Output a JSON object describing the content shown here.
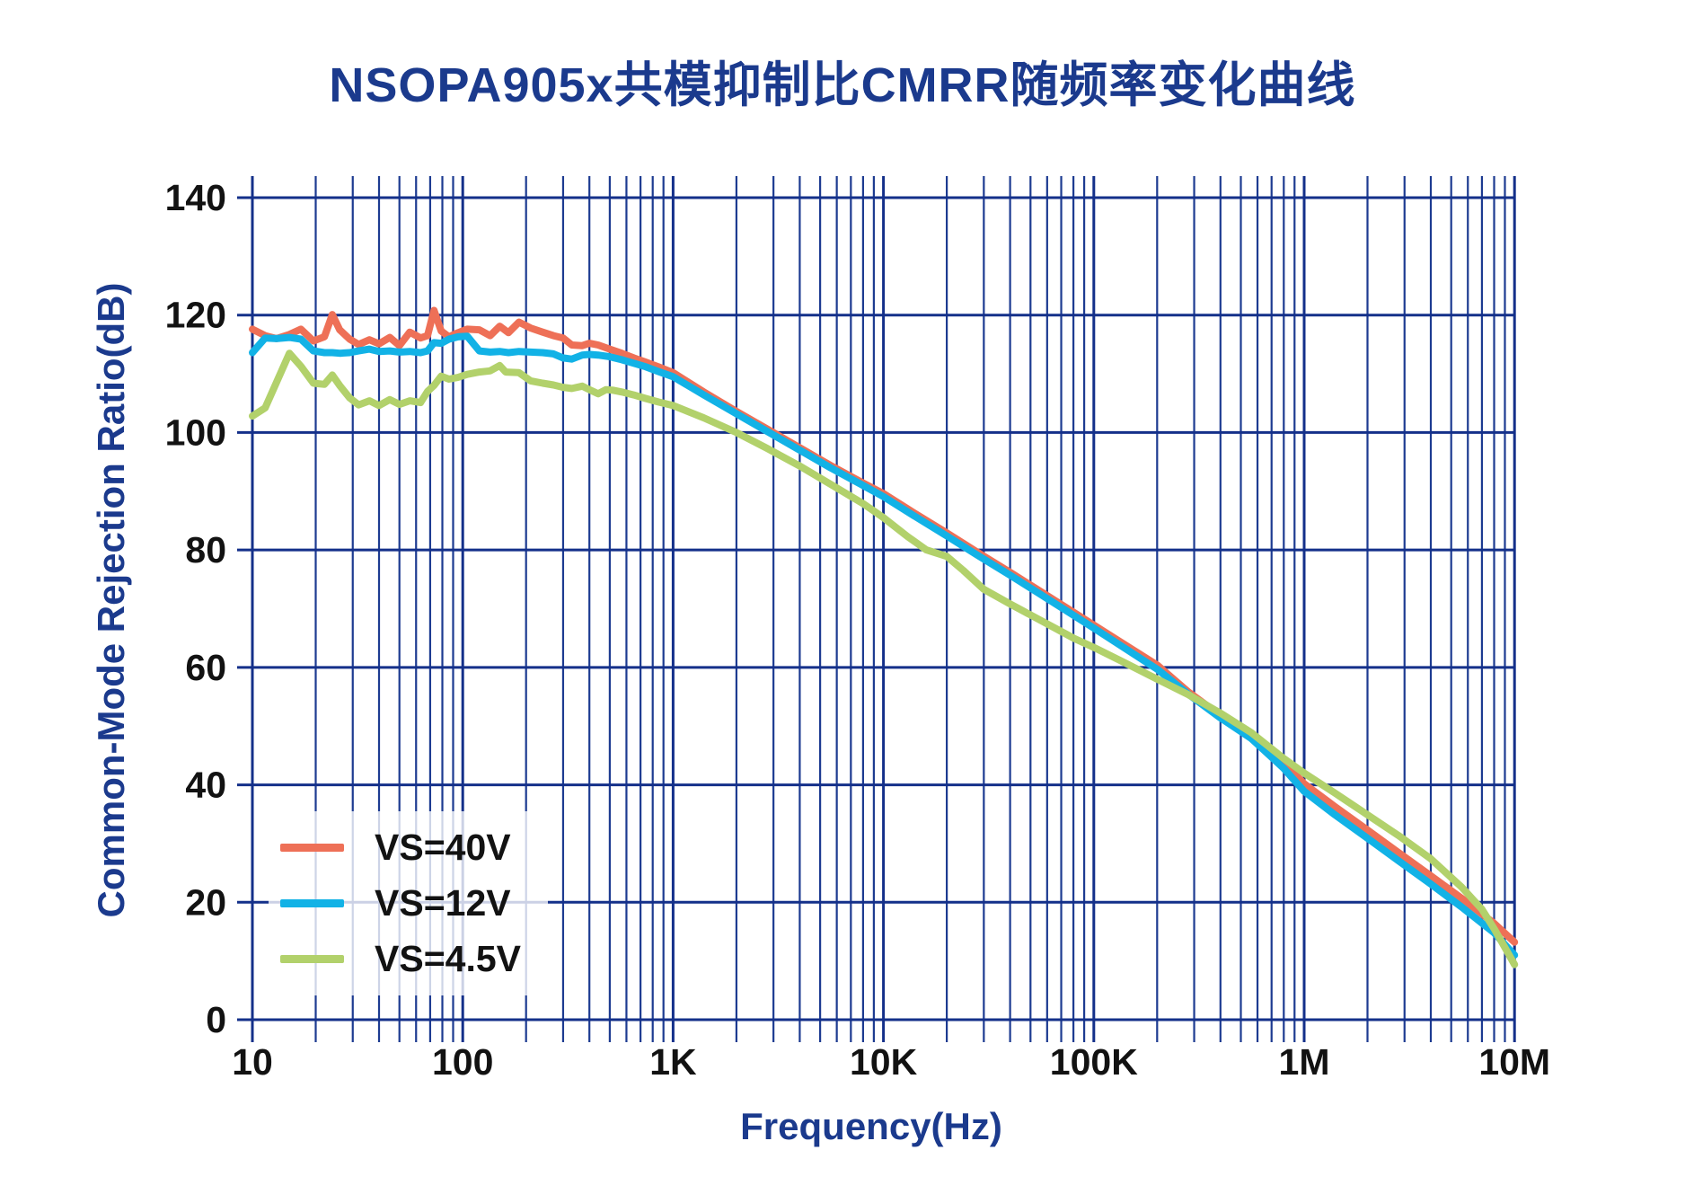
{
  "title": "NSOPA905x共模抑制比CMRR随频率变化曲线",
  "chart_data": {
    "type": "line",
    "title": "NSOPA905x共模抑制比CMRR随频率变化曲线",
    "xlabel": "Frequency(Hz)",
    "ylabel": "Common-Mode Rejection Ratio(dB)",
    "x_scale": "log",
    "x_range": [
      10,
      10000000
    ],
    "ylim": [
      0,
      143.5
    ],
    "grid": true,
    "grid_color": "#16328c",
    "y_ticks": [
      {
        "label": "0",
        "value": 0
      },
      {
        "label": "20",
        "value": 20
      },
      {
        "label": "40",
        "value": 40
      },
      {
        "label": "60",
        "value": 60
      },
      {
        "label": "80",
        "value": 80
      },
      {
        "label": "100",
        "value": 100
      },
      {
        "label": "120",
        "value": 120
      },
      {
        "label": "140",
        "value": 140
      }
    ],
    "x_ticks": [
      {
        "label": "10",
        "value": 10
      },
      {
        "label": "100",
        "value": 100
      },
      {
        "label": "1K",
        "value": 1000
      },
      {
        "label": "10K",
        "value": 10000
      },
      {
        "label": "100K",
        "value": 100000
      },
      {
        "label": "1M",
        "value": 1000000
      },
      {
        "label": "10M",
        "value": 10000000
      }
    ],
    "legend_position": "lower-left",
    "series": [
      {
        "name": "VS=40V",
        "color": "#ee7057",
        "points": [
          [
            10,
            117.6
          ],
          [
            11.5,
            116.5
          ],
          [
            13,
            116.0
          ],
          [
            15,
            116.7
          ],
          [
            17,
            117.6
          ],
          [
            19.5,
            115.6
          ],
          [
            22,
            116.3
          ],
          [
            24,
            120.1
          ],
          [
            26,
            117.5
          ],
          [
            29,
            115.9
          ],
          [
            32,
            115.0
          ],
          [
            36,
            115.8
          ],
          [
            40,
            115.1
          ],
          [
            45,
            116.2
          ],
          [
            50,
            114.8
          ],
          [
            56,
            117.1
          ],
          [
            63,
            116.1
          ],
          [
            68,
            116.5
          ],
          [
            73,
            120.8
          ],
          [
            79,
            117.3
          ],
          [
            86,
            116.3
          ],
          [
            95,
            117.0
          ],
          [
            105,
            117.6
          ],
          [
            120,
            117.5
          ],
          [
            135,
            116.5
          ],
          [
            150,
            118.1
          ],
          [
            165,
            117.0
          ],
          [
            185,
            118.8
          ],
          [
            210,
            117.8
          ],
          [
            240,
            117.1
          ],
          [
            270,
            116.5
          ],
          [
            300,
            116.1
          ],
          [
            330,
            114.9
          ],
          [
            370,
            114.8
          ],
          [
            400,
            115.2
          ],
          [
            440,
            114.9
          ],
          [
            500,
            114.2
          ],
          [
            570,
            113.5
          ],
          [
            650,
            112.7
          ],
          [
            740,
            112.0
          ],
          [
            850,
            111.2
          ],
          [
            1000,
            110.2
          ],
          [
            1400,
            106.9
          ],
          [
            2000,
            103.6
          ],
          [
            2800,
            100.6
          ],
          [
            4000,
            97.4
          ],
          [
            5600,
            94.4
          ],
          [
            8000,
            91.4
          ],
          [
            10000,
            89.6
          ],
          [
            14000,
            86.3
          ],
          [
            20000,
            82.9
          ],
          [
            28000,
            79.6
          ],
          [
            40000,
            76.2
          ],
          [
            56000,
            72.9
          ],
          [
            80000,
            69.4
          ],
          [
            100000,
            67.2
          ],
          [
            140000,
            63.9
          ],
          [
            200000,
            60.4
          ],
          [
            280000,
            55.9
          ],
          [
            400000,
            51.8
          ],
          [
            560000,
            48.6
          ],
          [
            800000,
            43.8
          ],
          [
            1000000,
            40.2
          ],
          [
            1400000,
            36.3
          ],
          [
            2000000,
            32.3
          ],
          [
            2800000,
            28.5
          ],
          [
            4000000,
            24.5
          ],
          [
            5600000,
            20.7
          ],
          [
            8000000,
            16.4
          ],
          [
            10000000,
            13.2
          ]
        ]
      },
      {
        "name": "VS=12V",
        "color": "#12b2e6",
        "points": [
          [
            10,
            113.6
          ],
          [
            11.5,
            116.1
          ],
          [
            13,
            116.0
          ],
          [
            15,
            116.2
          ],
          [
            17,
            115.9
          ],
          [
            19.5,
            113.9
          ],
          [
            22,
            113.6
          ],
          [
            24,
            113.6
          ],
          [
            26,
            113.5
          ],
          [
            29,
            113.6
          ],
          [
            32,
            113.9
          ],
          [
            36,
            114.2
          ],
          [
            40,
            113.8
          ],
          [
            45,
            113.9
          ],
          [
            50,
            113.7
          ],
          [
            56,
            113.8
          ],
          [
            63,
            113.6
          ],
          [
            68,
            113.9
          ],
          [
            73,
            115.3
          ],
          [
            79,
            115.2
          ],
          [
            86,
            115.9
          ],
          [
            95,
            116.3
          ],
          [
            105,
            116.4
          ],
          [
            120,
            113.9
          ],
          [
            135,
            113.7
          ],
          [
            150,
            113.8
          ],
          [
            165,
            113.6
          ],
          [
            185,
            113.8
          ],
          [
            210,
            113.7
          ],
          [
            240,
            113.6
          ],
          [
            270,
            113.4
          ],
          [
            300,
            112.7
          ],
          [
            330,
            112.5
          ],
          [
            370,
            113.2
          ],
          [
            400,
            113.3
          ],
          [
            440,
            113.2
          ],
          [
            500,
            112.9
          ],
          [
            570,
            112.4
          ],
          [
            650,
            111.8
          ],
          [
            740,
            111.2
          ],
          [
            850,
            110.4
          ],
          [
            1000,
            109.5
          ],
          [
            1400,
            106.4
          ],
          [
            2000,
            103.2
          ],
          [
            2800,
            100.2
          ],
          [
            4000,
            97.0
          ],
          [
            5600,
            94.0
          ],
          [
            8000,
            91.0
          ],
          [
            10000,
            89.1
          ],
          [
            14000,
            85.8
          ],
          [
            20000,
            82.4
          ],
          [
            28000,
            79.1
          ],
          [
            40000,
            75.7
          ],
          [
            56000,
            72.4
          ],
          [
            80000,
            68.9
          ],
          [
            100000,
            66.7
          ],
          [
            140000,
            63.3
          ],
          [
            200000,
            59.7
          ],
          [
            280000,
            55.5
          ],
          [
            400000,
            51.4
          ],
          [
            560000,
            47.9
          ],
          [
            800000,
            42.8
          ],
          [
            1000000,
            38.9
          ],
          [
            1400000,
            34.9
          ],
          [
            2000000,
            30.9
          ],
          [
            2800000,
            27.1
          ],
          [
            4000000,
            23.1
          ],
          [
            5600000,
            19.2
          ],
          [
            8000000,
            14.8
          ],
          [
            10000000,
            11.0
          ]
        ]
      },
      {
        "name": "VS=4.5V",
        "color": "#b2d16b",
        "points": [
          [
            10,
            102.8
          ],
          [
            11.5,
            104.2
          ],
          [
            13,
            108.5
          ],
          [
            15,
            113.5
          ],
          [
            17,
            111.3
          ],
          [
            19.5,
            108.4
          ],
          [
            22,
            108.2
          ],
          [
            24,
            109.8
          ],
          [
            26,
            108.0
          ],
          [
            29,
            105.9
          ],
          [
            32,
            104.7
          ],
          [
            36,
            105.4
          ],
          [
            40,
            104.6
          ],
          [
            45,
            105.6
          ],
          [
            50,
            104.8
          ],
          [
            56,
            105.4
          ],
          [
            63,
            105.1
          ],
          [
            68,
            107.0
          ],
          [
            73,
            108.0
          ],
          [
            79,
            109.6
          ],
          [
            86,
            109.1
          ],
          [
            95,
            109.4
          ],
          [
            105,
            109.9
          ],
          [
            120,
            110.3
          ],
          [
            135,
            110.5
          ],
          [
            150,
            111.4
          ],
          [
            160,
            110.3
          ],
          [
            185,
            110.2
          ],
          [
            210,
            108.8
          ],
          [
            240,
            108.4
          ],
          [
            270,
            108.1
          ],
          [
            300,
            107.7
          ],
          [
            330,
            107.5
          ],
          [
            370,
            107.9
          ],
          [
            400,
            107.3
          ],
          [
            440,
            106.6
          ],
          [
            480,
            107.3
          ],
          [
            520,
            107.2
          ],
          [
            570,
            106.9
          ],
          [
            650,
            106.4
          ],
          [
            740,
            105.8
          ],
          [
            850,
            105.2
          ],
          [
            1000,
            104.6
          ],
          [
            1400,
            102.5
          ],
          [
            2000,
            100.0
          ],
          [
            2800,
            97.3
          ],
          [
            4000,
            94.3
          ],
          [
            5600,
            91.2
          ],
          [
            8000,
            87.9
          ],
          [
            10000,
            85.5
          ],
          [
            13000,
            82.3
          ],
          [
            16000,
            80.0
          ],
          [
            20000,
            78.9
          ],
          [
            24000,
            76.5
          ],
          [
            30000,
            73.3
          ],
          [
            40000,
            70.8
          ],
          [
            56000,
            68.0
          ],
          [
            80000,
            65.0
          ],
          [
            100000,
            63.4
          ],
          [
            140000,
            60.8
          ],
          [
            200000,
            58.0
          ],
          [
            280000,
            55.4
          ],
          [
            400000,
            52.2
          ],
          [
            560000,
            48.9
          ],
          [
            800000,
            44.5
          ],
          [
            1000000,
            42.0
          ],
          [
            1400000,
            38.6
          ],
          [
            2000000,
            34.9
          ],
          [
            2800000,
            31.4
          ],
          [
            4000000,
            27.4
          ],
          [
            5600000,
            22.6
          ],
          [
            7000000,
            18.8
          ],
          [
            8000000,
            15.5
          ],
          [
            9000000,
            12.3
          ],
          [
            10000000,
            9.4
          ]
        ]
      }
    ]
  },
  "legend": {
    "entries": [
      {
        "label": "VS=40V",
        "color": "#ee7057"
      },
      {
        "label": "VS=12V",
        "color": "#12b2e6"
      },
      {
        "label": "VS=4.5V",
        "color": "#b2d16b"
      }
    ]
  }
}
